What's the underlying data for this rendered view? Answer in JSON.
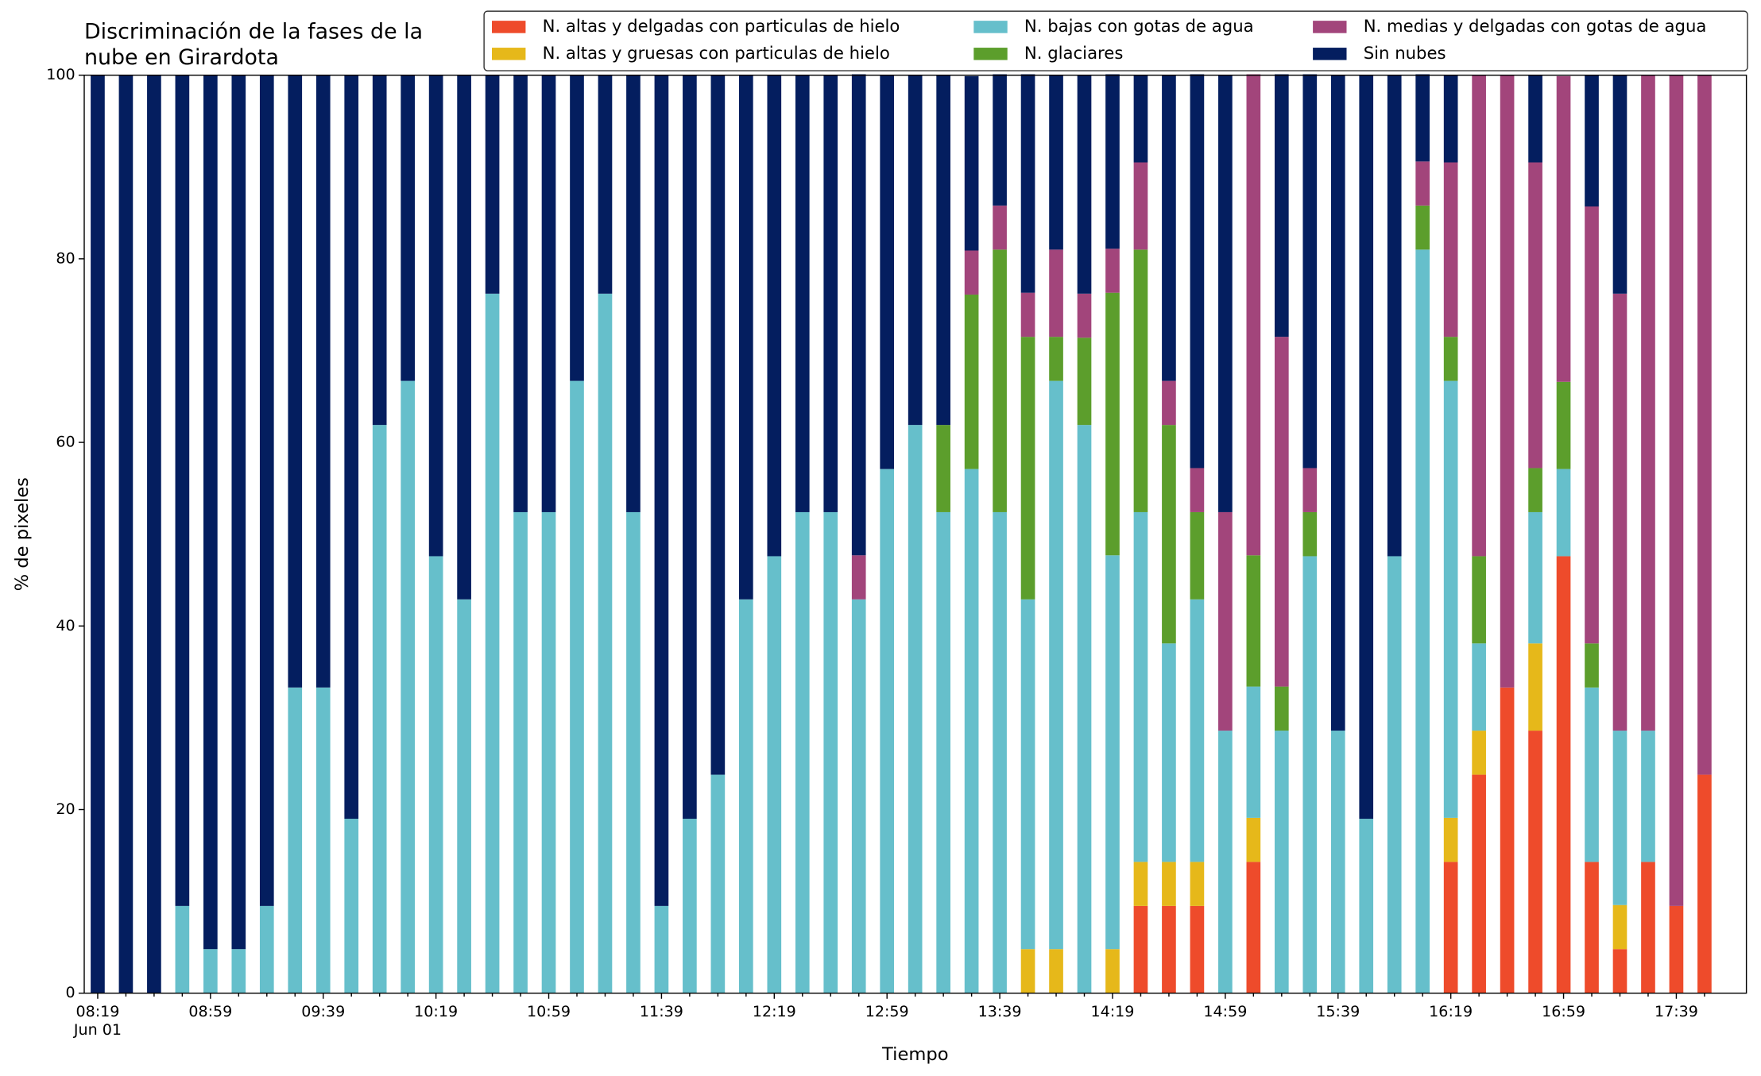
{
  "chart_data": {
    "type": "stacked_bar",
    "title": [
      "Discriminación de la fases de la",
      "nube en Girardota"
    ],
    "xlabel": "Tiempo",
    "x_sublabel": "Jun 01",
    "ylabel": "% de pixeles",
    "ylim": [
      0,
      100
    ],
    "yticks": [
      0,
      20,
      40,
      60,
      80,
      100
    ],
    "legend_position": "top right",
    "categories": [
      "08:19",
      null,
      null,
      null,
      "08:59",
      null,
      null,
      null,
      "09:39",
      null,
      null,
      null,
      "10:19",
      null,
      null,
      null,
      "10:59",
      null,
      null,
      null,
      "11:39",
      null,
      null,
      null,
      "12:19",
      null,
      null,
      null,
      "12:59",
      null,
      null,
      null,
      "13:39",
      null,
      null,
      null,
      "14:19",
      null,
      null,
      null,
      "14:59",
      null,
      null,
      null,
      "15:39",
      null,
      null,
      null,
      "16:19",
      null,
      null,
      null,
      "16:59",
      null,
      null,
      null,
      "17:39",
      null
    ],
    "series": [
      {
        "name": "N. altas y delgadas con particulas de hielo",
        "color": "#ee4b2b",
        "values": [
          0,
          0,
          0,
          0,
          0,
          0,
          0,
          0,
          0,
          0,
          0,
          0,
          0,
          0,
          0,
          0,
          0,
          0,
          0,
          0,
          0,
          0,
          0,
          0,
          0,
          0,
          0,
          0,
          0,
          0,
          0,
          0,
          0,
          0,
          0,
          0,
          0,
          9.5,
          9.5,
          9.5,
          0,
          14.3,
          0,
          0,
          0,
          0,
          0,
          0,
          14.3,
          23.8,
          33.3,
          28.6,
          47.6,
          14.3,
          4.8,
          14.3,
          9.5,
          23.8
        ]
      },
      {
        "name": "N. altas y gruesas con particulas de hielo",
        "color": "#e6b81a",
        "values": [
          0,
          0,
          0,
          0,
          0,
          0,
          0,
          0,
          0,
          0,
          0,
          0,
          0,
          0,
          0,
          0,
          0,
          0,
          0,
          0,
          0,
          0,
          0,
          0,
          0,
          0,
          0,
          0,
          0,
          0,
          0,
          0,
          0,
          4.8,
          4.8,
          0,
          4.8,
          4.8,
          4.8,
          4.8,
          0,
          4.8,
          0,
          0,
          0,
          0,
          0,
          0,
          4.8,
          4.8,
          0,
          9.5,
          0,
          0,
          4.8,
          0,
          0,
          0
        ]
      },
      {
        "name": "N. bajas con gotas de agua",
        "color": "#66bfcb",
        "values": [
          0,
          0,
          0,
          9.5,
          4.8,
          4.8,
          9.5,
          33.3,
          33.3,
          19,
          61.9,
          66.7,
          47.6,
          42.9,
          76.2,
          52.4,
          52.4,
          66.7,
          76.2,
          52.4,
          9.5,
          19,
          23.8,
          42.9,
          47.6,
          52.4,
          52.4,
          42.9,
          57.1,
          61.9,
          52.4,
          57.1,
          52.4,
          38.1,
          61.9,
          61.9,
          42.9,
          38.1,
          23.8,
          28.6,
          28.6,
          14.3,
          28.6,
          47.6,
          28.6,
          19,
          47.6,
          81,
          47.6,
          9.5,
          0,
          14.3,
          9.5,
          19,
          19,
          14.3,
          0,
          0
        ]
      },
      {
        "name": "N. glaciares",
        "color": "#5c9e2c",
        "values": [
          0,
          0,
          0,
          0,
          0,
          0,
          0,
          0,
          0,
          0,
          0,
          0,
          0,
          0,
          0,
          0,
          0,
          0,
          0,
          0,
          0,
          0,
          0,
          0,
          0,
          0,
          0,
          0,
          0,
          0,
          9.5,
          19,
          28.6,
          28.6,
          4.8,
          9.5,
          28.6,
          28.6,
          23.8,
          9.5,
          0,
          14.3,
          4.8,
          4.8,
          0,
          0,
          0,
          4.8,
          4.8,
          9.5,
          0,
          4.8,
          9.5,
          4.8,
          0,
          0,
          0,
          0
        ]
      },
      {
        "name": "N. medias y delgadas con gotas de agua",
        "color": "#a2457b",
        "values": [
          0,
          0,
          0,
          0,
          0,
          0,
          0,
          0,
          0,
          0,
          0,
          0,
          0,
          0,
          0,
          0,
          0,
          0,
          0,
          0,
          0,
          0,
          0,
          0,
          0,
          0,
          0,
          4.8,
          0,
          0,
          0,
          4.8,
          4.8,
          4.8,
          9.5,
          4.8,
          4.8,
          9.5,
          4.8,
          4.8,
          23.8,
          52.4,
          38.1,
          4.8,
          0,
          0,
          0,
          4.8,
          19,
          52.4,
          66.7,
          33.3,
          33.3,
          47.6,
          47.6,
          71.4,
          90.5,
          76.2
        ]
      },
      {
        "name": "Sin nubes",
        "color": "#041e5f",
        "values": [
          100,
          100,
          100,
          90.5,
          95.2,
          95.2,
          90.5,
          66.7,
          66.7,
          81,
          38.1,
          33.3,
          52.4,
          57.1,
          23.8,
          47.6,
          47.6,
          33.3,
          23.8,
          47.6,
          90.5,
          81,
          76.2,
          57.1,
          52.4,
          47.6,
          47.6,
          52.4,
          42.9,
          38.1,
          38.1,
          19,
          14.3,
          23.8,
          19,
          23.8,
          19,
          9.5,
          33.3,
          42.9,
          47.6,
          0,
          28.6,
          42.9,
          71.4,
          81,
          52.4,
          9.5,
          9.5,
          0,
          0,
          9.5,
          0,
          14.3,
          23.8,
          0,
          0,
          0
        ]
      }
    ]
  }
}
